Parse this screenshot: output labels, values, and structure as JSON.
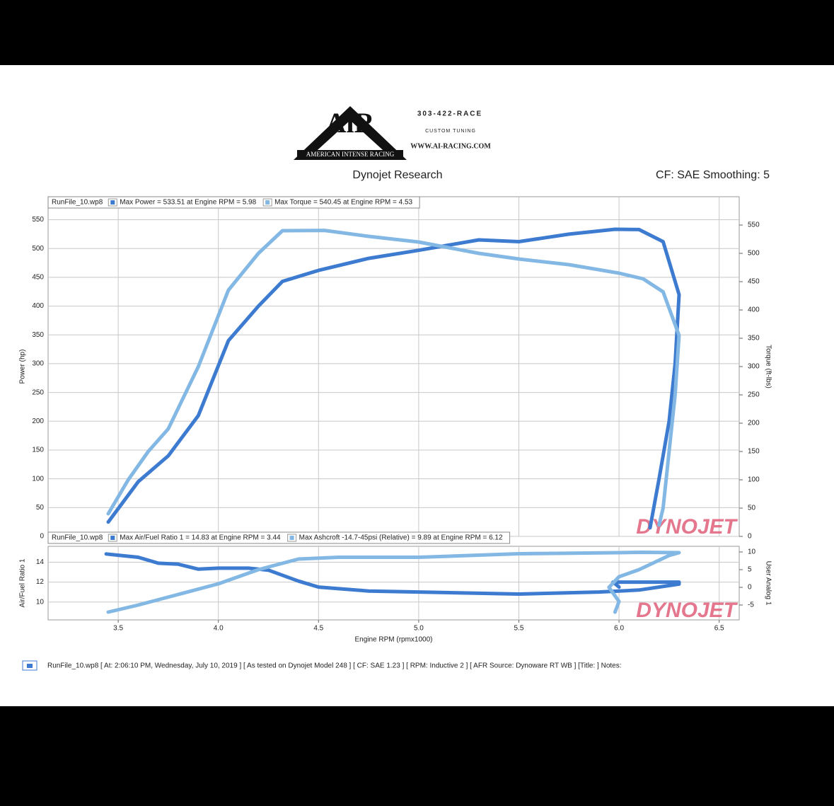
{
  "header": {
    "logo": "AiR",
    "logo_band": "AMERICAN INTENSE RACING",
    "phone": "303-422-RACE",
    "tagline": "Custom Tuning",
    "website": "WWW.AI-RACING.COM",
    "title": "Dynojet Research",
    "settings": "CF: SAE Smoothing: 5"
  },
  "chart_data": [
    {
      "type": "line",
      "run_file": "RunFile_10.wp8",
      "watermark": "DYNOJET",
      "grid": true,
      "ylabel": "Power (hp)",
      "y2label": "Torque (ft-lbs)",
      "xlim": [
        3.15,
        6.6
      ],
      "xticks": [
        3.5,
        4,
        4.5,
        5,
        5.5,
        6,
        6.5
      ],
      "ylim": [
        0,
        590
      ],
      "yticks": [
        0,
        50,
        100,
        150,
        200,
        250,
        300,
        350,
        400,
        450,
        500,
        550
      ],
      "y2lim": [
        0,
        600
      ],
      "y2ticks": [
        0,
        50,
        100,
        150,
        200,
        250,
        300,
        350,
        400,
        450,
        500,
        550
      ],
      "series": [
        {
          "name": "Max Power = 533.51 at Engine RPM = 5.98",
          "color": "#3d7bd0",
          "x": [
            3.45,
            3.6,
            3.75,
            3.9,
            4.05,
            4.2,
            4.32,
            4.5,
            4.75,
            5.0,
            5.3,
            5.5,
            5.75,
            5.98,
            6.1,
            6.22,
            6.3,
            6.28,
            6.25,
            6.2,
            6.155
          ],
          "values": [
            25,
            95,
            140,
            210,
            340,
            400,
            443,
            462,
            483,
            497,
            515,
            512,
            525,
            533.51,
            533,
            512,
            420,
            300,
            200,
            100,
            15
          ]
        },
        {
          "name": "Max Torque = 540.45 at Engine RPM = 4.53",
          "color": "#84b8e4",
          "axis": "y2",
          "x": [
            3.45,
            3.55,
            3.65,
            3.75,
            3.9,
            4.05,
            4.2,
            4.32,
            4.53,
            4.75,
            5.0,
            5.3,
            5.5,
            5.75,
            6.0,
            6.12,
            6.22,
            6.3,
            6.28,
            6.25,
            6.22,
            6.2
          ],
          "values": [
            40,
            100,
            150,
            190,
            300,
            435,
            500,
            540,
            540.45,
            530,
            520,
            500,
            490,
            480,
            465,
            455,
            432,
            355,
            250,
            150,
            50,
            20
          ]
        }
      ]
    },
    {
      "type": "line",
      "run_file": "RunFile_10.wp8",
      "watermark": "DYNOJET",
      "grid": true,
      "ylabel": "Air/Fuel Ratio 1",
      "y2label": "User Analog 1",
      "xlabel": "Engine RPM (rpmx1000)",
      "xlim": [
        3.15,
        6.6
      ],
      "xticks": [
        3.5,
        {
          "value": 4,
          "label": "4.0"
        },
        4.5,
        {
          "value": 5,
          "label": "5.0"
        },
        5.5,
        {
          "value": 6,
          "label": "6.0"
        },
        6.5
      ],
      "ylim": [
        8.2,
        15.6
      ],
      "yticks": [
        10,
        12,
        14
      ],
      "y2lim": [
        -9.2,
        11.6
      ],
      "y2ticks": [
        -5,
        0,
        5,
        10
      ],
      "series": [
        {
          "name": "Max Air/Fuel Ratio 1 = 14.83 at Engine RPM = 3.44",
          "color": "#3d7bd0",
          "x": [
            3.44,
            3.5,
            3.6,
            3.7,
            3.8,
            3.9,
            4.0,
            4.15,
            4.25,
            4.4,
            4.5,
            4.75,
            5.0,
            5.5,
            5.9,
            6.1,
            6.3,
            6.3,
            6.1,
            5.97,
            6.0
          ],
          "values": [
            14.83,
            14.7,
            14.5,
            13.9,
            13.8,
            13.3,
            13.4,
            13.4,
            13.2,
            12.1,
            11.5,
            11.1,
            11.0,
            10.8,
            11.0,
            11.2,
            11.8,
            12.0,
            12.0,
            12.0,
            11.5
          ]
        },
        {
          "name": "Max Ashcroft -14.7-45psi (Relative) = 9.89 at Engine RPM = 6.12",
          "color": "#84b8e4",
          "axis": "y2",
          "x": [
            3.45,
            3.6,
            3.8,
            4.0,
            4.2,
            4.4,
            4.6,
            5.0,
            5.5,
            6.0,
            6.12,
            6.3,
            6.25,
            6.1,
            6.0,
            5.95,
            6.0,
            5.98
          ],
          "values": [
            -7,
            -5,
            -2,
            1,
            5,
            8,
            8.5,
            8.5,
            9.5,
            9.8,
            9.89,
            9.8,
            9,
            5,
            3,
            0,
            -4,
            -7
          ]
        }
      ]
    }
  ],
  "footer": "RunFile_10.wp8 [ At: 2:06:10 PM, Wednesday, July 10, 2019 ] [ As tested on Dynojet Model 248 ] [ CF: SAE 1.23 ] [ RPM: Inductive 2 ] [ AFR Source: Dynoware RT WB ] [Title: ]  Notes:"
}
